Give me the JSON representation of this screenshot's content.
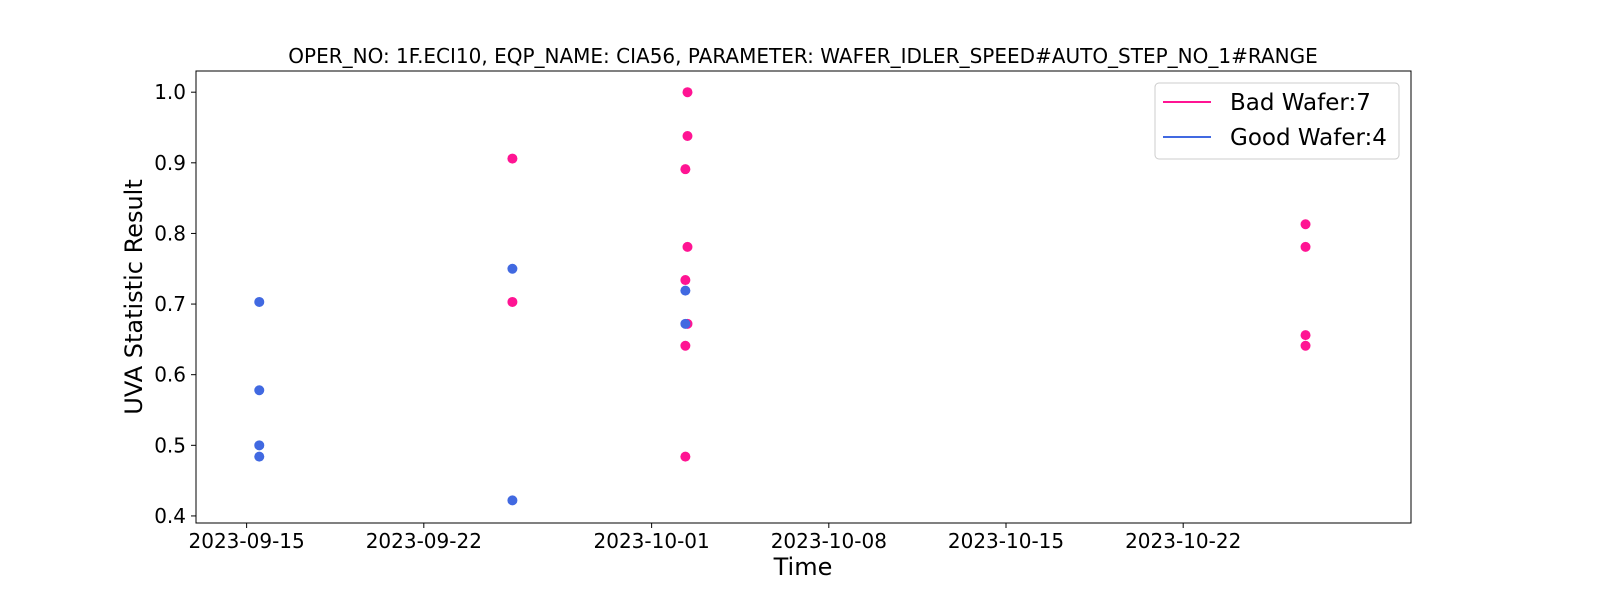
{
  "chart_data": {
    "type": "scatter",
    "title": "OPER_NO: 1F.ECI10,  EQP_NAME: CIA56,  PARAMETER: WAFER_IDLER_SPEED#AUTO_STEP_NO_1#RANGE",
    "xlabel": "Time",
    "ylabel": "UVA Statistic Result",
    "x_ticks": [
      "2023-09-15",
      "2023-09-22",
      "2023-10-01",
      "2023-10-08",
      "2023-10-15",
      "2023-10-22"
    ],
    "y_ticks": [
      "0.4",
      "0.5",
      "0.6",
      "0.7",
      "0.8",
      "0.9",
      "1.0"
    ],
    "xlim": [
      "2023-09-13",
      "2023-10-31"
    ],
    "ylim": [
      0.39,
      1.03
    ],
    "grid": false,
    "legend_position": "top-right",
    "series": [
      {
        "name": "Bad Wafer:7",
        "color": "#ff1493",
        "points": [
          {
            "x": "2023-09-25T12:00",
            "y": 0.906
          },
          {
            "x": "2023-09-25T12:00",
            "y": 0.703
          },
          {
            "x": "2023-10-02T10:00",
            "y": 1.0
          },
          {
            "x": "2023-10-02T10:00",
            "y": 0.938
          },
          {
            "x": "2023-10-02T08:00",
            "y": 0.891
          },
          {
            "x": "2023-10-02T10:00",
            "y": 0.781
          },
          {
            "x": "2023-10-02T08:00",
            "y": 0.734
          },
          {
            "x": "2023-10-02T10:00",
            "y": 0.672
          },
          {
            "x": "2023-10-02T08:00",
            "y": 0.641
          },
          {
            "x": "2023-10-02T08:00",
            "y": 0.484
          },
          {
            "x": "2023-10-26T20:00",
            "y": 0.813
          },
          {
            "x": "2023-10-26T20:00",
            "y": 0.781
          },
          {
            "x": "2023-10-26T20:00",
            "y": 0.656
          },
          {
            "x": "2023-10-26T20:00",
            "y": 0.641
          }
        ]
      },
      {
        "name": "Good Wafer:4",
        "color": "#4169e1",
        "points": [
          {
            "x": "2023-09-15T12:00",
            "y": 0.703
          },
          {
            "x": "2023-09-15T12:00",
            "y": 0.578
          },
          {
            "x": "2023-09-15T12:00",
            "y": 0.5
          },
          {
            "x": "2023-09-15T12:00",
            "y": 0.484
          },
          {
            "x": "2023-09-25T12:00",
            "y": 0.75
          },
          {
            "x": "2023-09-25T12:00",
            "y": 0.422
          },
          {
            "x": "2023-10-02T08:00",
            "y": 0.719
          },
          {
            "x": "2023-10-02T08:00",
            "y": 0.672
          }
        ]
      }
    ]
  }
}
